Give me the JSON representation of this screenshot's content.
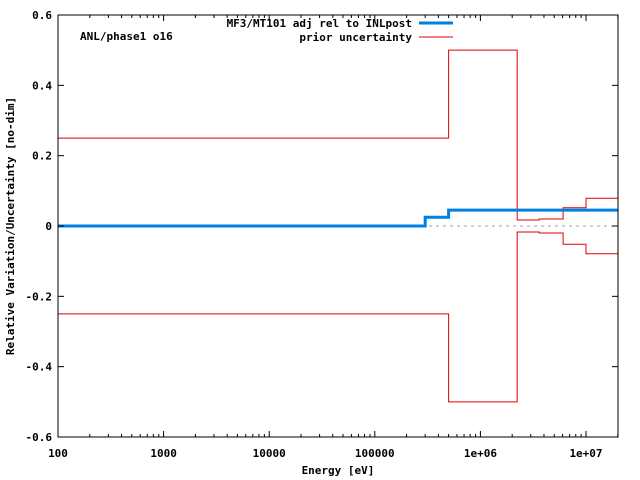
{
  "chart_data": {
    "type": "line",
    "subtype": "step",
    "title": "",
    "annotation": "ANL/phase1 o16",
    "xlabel": "Energy [eV]",
    "ylabel": "Relative Variation/Uncertainty [no-dim]",
    "xscale": "log",
    "xlim": [
      100,
      20000000
    ],
    "ylim": [
      -0.6,
      0.6
    ],
    "grid": false,
    "legend_position": "top-right",
    "x_ticks": [
      {
        "value": 100,
        "label": "100"
      },
      {
        "value": 1000,
        "label": "1000"
      },
      {
        "value": 10000,
        "label": "10000"
      },
      {
        "value": 100000,
        "label": "100000"
      },
      {
        "value": 1000000,
        "label": "1e+06"
      },
      {
        "value": 10000000,
        "label": "1e+07"
      }
    ],
    "y_ticks": [
      {
        "value": 0.6,
        "label": "0.6"
      },
      {
        "value": 0.4,
        "label": "0.4"
      },
      {
        "value": 0.2,
        "label": "0.2"
      },
      {
        "value": 0,
        "label": "0"
      },
      {
        "value": -0.2,
        "label": "-0.2"
      },
      {
        "value": -0.4,
        "label": "-0.4"
      },
      {
        "value": -0.6,
        "label": "-0.6"
      }
    ],
    "series": [
      {
        "name": "MF3/MT101 adj rel to INLpost",
        "color": "#0080e0",
        "line_width": 3,
        "x_edges": [
          100,
          300000,
          500000,
          20000000
        ],
        "values": [
          0.0,
          0.025,
          0.045
        ]
      },
      {
        "name": "prior uncertainty",
        "color": "#e00000",
        "line_width": 1,
        "x_edges": [
          100,
          500000,
          2230000,
          3600000,
          6070000,
          10000000,
          20000000
        ],
        "values": [
          0.25,
          0.5,
          0.017,
          0.02,
          0.052,
          0.079
        ],
        "mirror_negative": true
      }
    ],
    "zero_line": {
      "style": "dashed",
      "color": "#a0a0a0"
    }
  },
  "legend": {
    "entries": [
      {
        "label": "MF3/MT101 adj rel to INLpost",
        "color": "#0080e0"
      },
      {
        "label": "prior uncertainty",
        "color": "#e00000"
      }
    ]
  }
}
